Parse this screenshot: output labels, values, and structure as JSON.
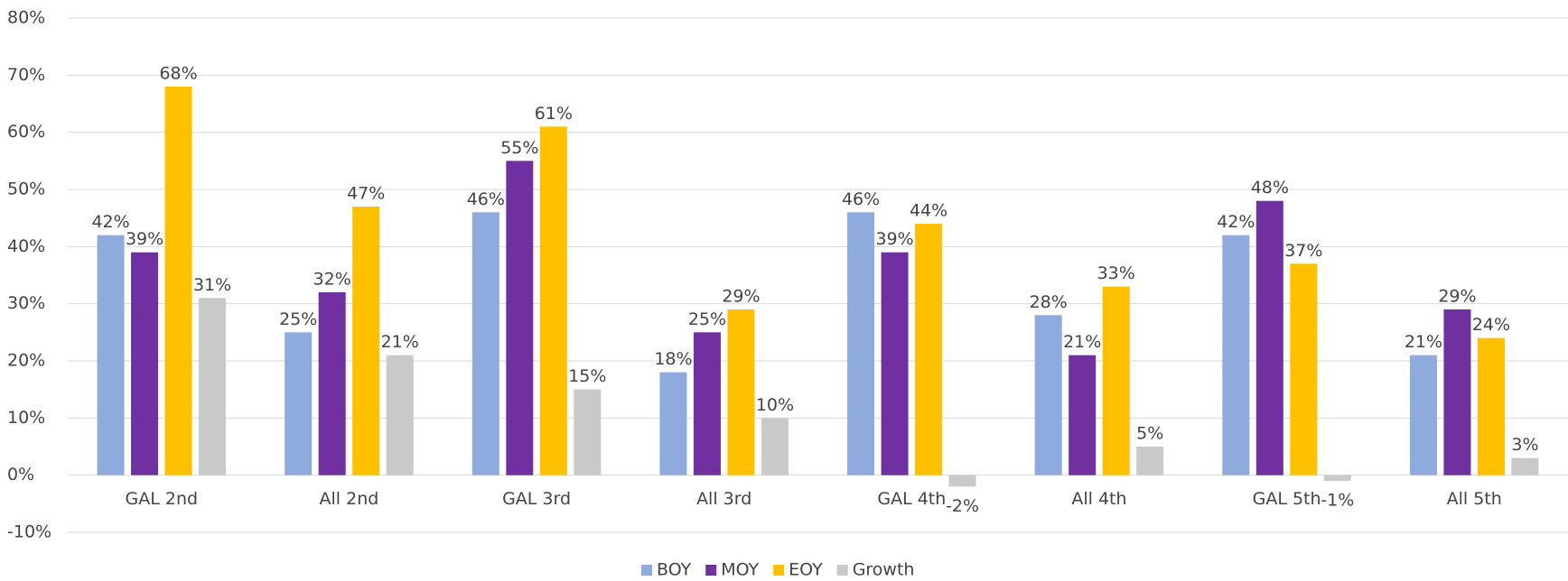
{
  "chart_data": {
    "type": "bar",
    "categories": [
      "GAL 2nd",
      "All 2nd",
      "GAL 3rd",
      "All 3rd",
      "GAL 4th",
      "All 4th",
      "GAL 5th",
      "All 5th"
    ],
    "series": [
      {
        "name": "BOY",
        "color": "#8faadc",
        "values": [
          42,
          25,
          46,
          18,
          46,
          28,
          42,
          21
        ],
        "value_labels": [
          "42%",
          "25%",
          "46%",
          "18%",
          "46%",
          "28%",
          "42%",
          "21%"
        ]
      },
      {
        "name": "MOY",
        "color": "#7030a0",
        "values": [
          39,
          32,
          55,
          25,
          39,
          21,
          48,
          29
        ],
        "value_labels": [
          "39%",
          "32%",
          "55%",
          "25%",
          "39%",
          "21%",
          "48%",
          "29%"
        ]
      },
      {
        "name": "EOY",
        "color": "#ffc000",
        "values": [
          68,
          47,
          61,
          29,
          44,
          33,
          37,
          24
        ],
        "value_labels": [
          "68%",
          "47%",
          "61%",
          "29%",
          "44%",
          "33%",
          "37%",
          "24%"
        ]
      },
      {
        "name": "Growth",
        "color": "#c9c9c9",
        "values": [
          31,
          21,
          15,
          10,
          -2,
          5,
          -1,
          3
        ],
        "value_labels": [
          "31%",
          "21%",
          "15%",
          "10%",
          "-2%",
          "5%",
          "-1%",
          "3%"
        ]
      }
    ],
    "ylim": [
      -10,
      80
    ],
    "yticks": [
      {
        "value": -10,
        "label": "-10%"
      },
      {
        "value": 0,
        "label": "0%"
      },
      {
        "value": 10,
        "label": "10%"
      },
      {
        "value": 20,
        "label": "20%"
      },
      {
        "value": 30,
        "label": "30%"
      },
      {
        "value": 40,
        "label": "40%"
      },
      {
        "value": 50,
        "label": "50%"
      },
      {
        "value": 60,
        "label": "60%"
      },
      {
        "value": 70,
        "label": "70%"
      },
      {
        "value": 80,
        "label": "80%"
      }
    ],
    "grid": true,
    "legend": "bottom"
  }
}
